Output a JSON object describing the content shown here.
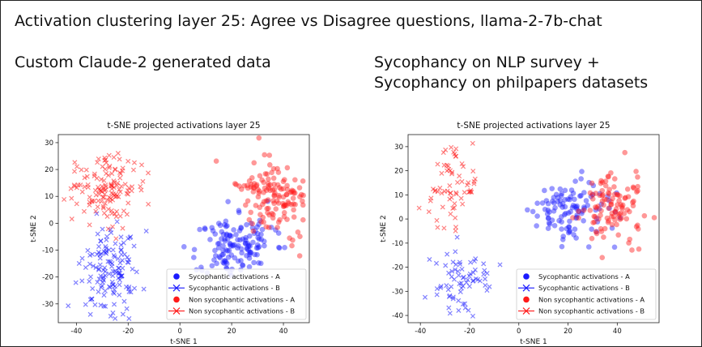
{
  "page": {
    "title": "Activation clustering layer 25: Agree vs Disagree questions, llama-2-7b-chat",
    "left_heading": "Custom Claude-2 generated data",
    "right_heading_line1": "Sycophancy on NLP survey +",
    "right_heading_line2": "Sycophancy on philpapers datasets"
  },
  "colors": {
    "blue": "#1a1aff",
    "red": "#ff1a1a"
  },
  "chart_data": [
    {
      "type": "scatter",
      "title": "t-SNE projected activations layer 25",
      "xlabel": "t-SNE 1",
      "ylabel": "t-SNE 2",
      "xlim": [
        -47,
        50
      ],
      "ylim": [
        -37,
        33
      ],
      "xticks": [
        -40,
        -20,
        0,
        20,
        40
      ],
      "yticks": [
        -30,
        -20,
        -10,
        0,
        10,
        20,
        30
      ],
      "legend_position": "lower-right",
      "series": [
        {
          "name": "Sycophantic activations - A",
          "marker": "circle",
          "color": "blue",
          "cluster": {
            "cx": 22,
            "cy": -8,
            "sx": 7,
            "sy": 6,
            "n": 140,
            "rot": 0.3
          }
        },
        {
          "name": "Sycophantic activations - B",
          "marker": "x",
          "color": "blue",
          "cluster": {
            "cx": -27,
            "cy": -17,
            "sx": 6,
            "sy": 8,
            "n": 140,
            "rot": 0
          }
        },
        {
          "name": "Non sycophantic activations - A",
          "marker": "circle",
          "color": "red",
          "cluster": {
            "cx": 36,
            "cy": 10,
            "sx": 6,
            "sy": 8,
            "n": 140,
            "rot": 0.6
          }
        },
        {
          "name": "Non sycophantic activations - B",
          "marker": "x",
          "color": "red",
          "cluster": {
            "cx": -29,
            "cy": 14,
            "sx": 6,
            "sy": 7,
            "n": 140,
            "rot": 0
          }
        }
      ],
      "seed": 11
    },
    {
      "type": "scatter",
      "title": "t-SNE projected activations layer 25",
      "xlabel": "t-SNE 1",
      "ylabel": "t-SNE 2",
      "xlim": [
        -45,
        57
      ],
      "ylim": [
        -43,
        35
      ],
      "xticks": [
        -40,
        -20,
        0,
        20,
        40
      ],
      "yticks": [
        -40,
        -30,
        -20,
        -10,
        0,
        10,
        20,
        30
      ],
      "legend_position": "lower-right",
      "series": [
        {
          "name": "Sycophantic activations - A",
          "marker": "circle",
          "color": "blue",
          "cluster": {
            "cx": 20,
            "cy": 4,
            "sx": 8,
            "sy": 6,
            "n": 110,
            "rot": 0
          }
        },
        {
          "name": "Sycophantic activations - B",
          "marker": "x",
          "color": "blue",
          "cluster": {
            "cx": -26,
            "cy": -25,
            "sx": 7,
            "sy": 7,
            "n": 70,
            "rot": 0
          }
        },
        {
          "name": "Non sycophantic activations - A",
          "marker": "circle",
          "color": "red",
          "cluster": {
            "cx": 38,
            "cy": 5,
            "sx": 6,
            "sy": 7,
            "n": 110,
            "rot": 0
          }
        },
        {
          "name": "Non sycophantic activations - B",
          "marker": "x",
          "color": "red",
          "cluster": {
            "cx": -27,
            "cy": 13,
            "sx": 5,
            "sy": 11,
            "n": 70,
            "rot": 0
          }
        }
      ],
      "seed": 29
    }
  ]
}
